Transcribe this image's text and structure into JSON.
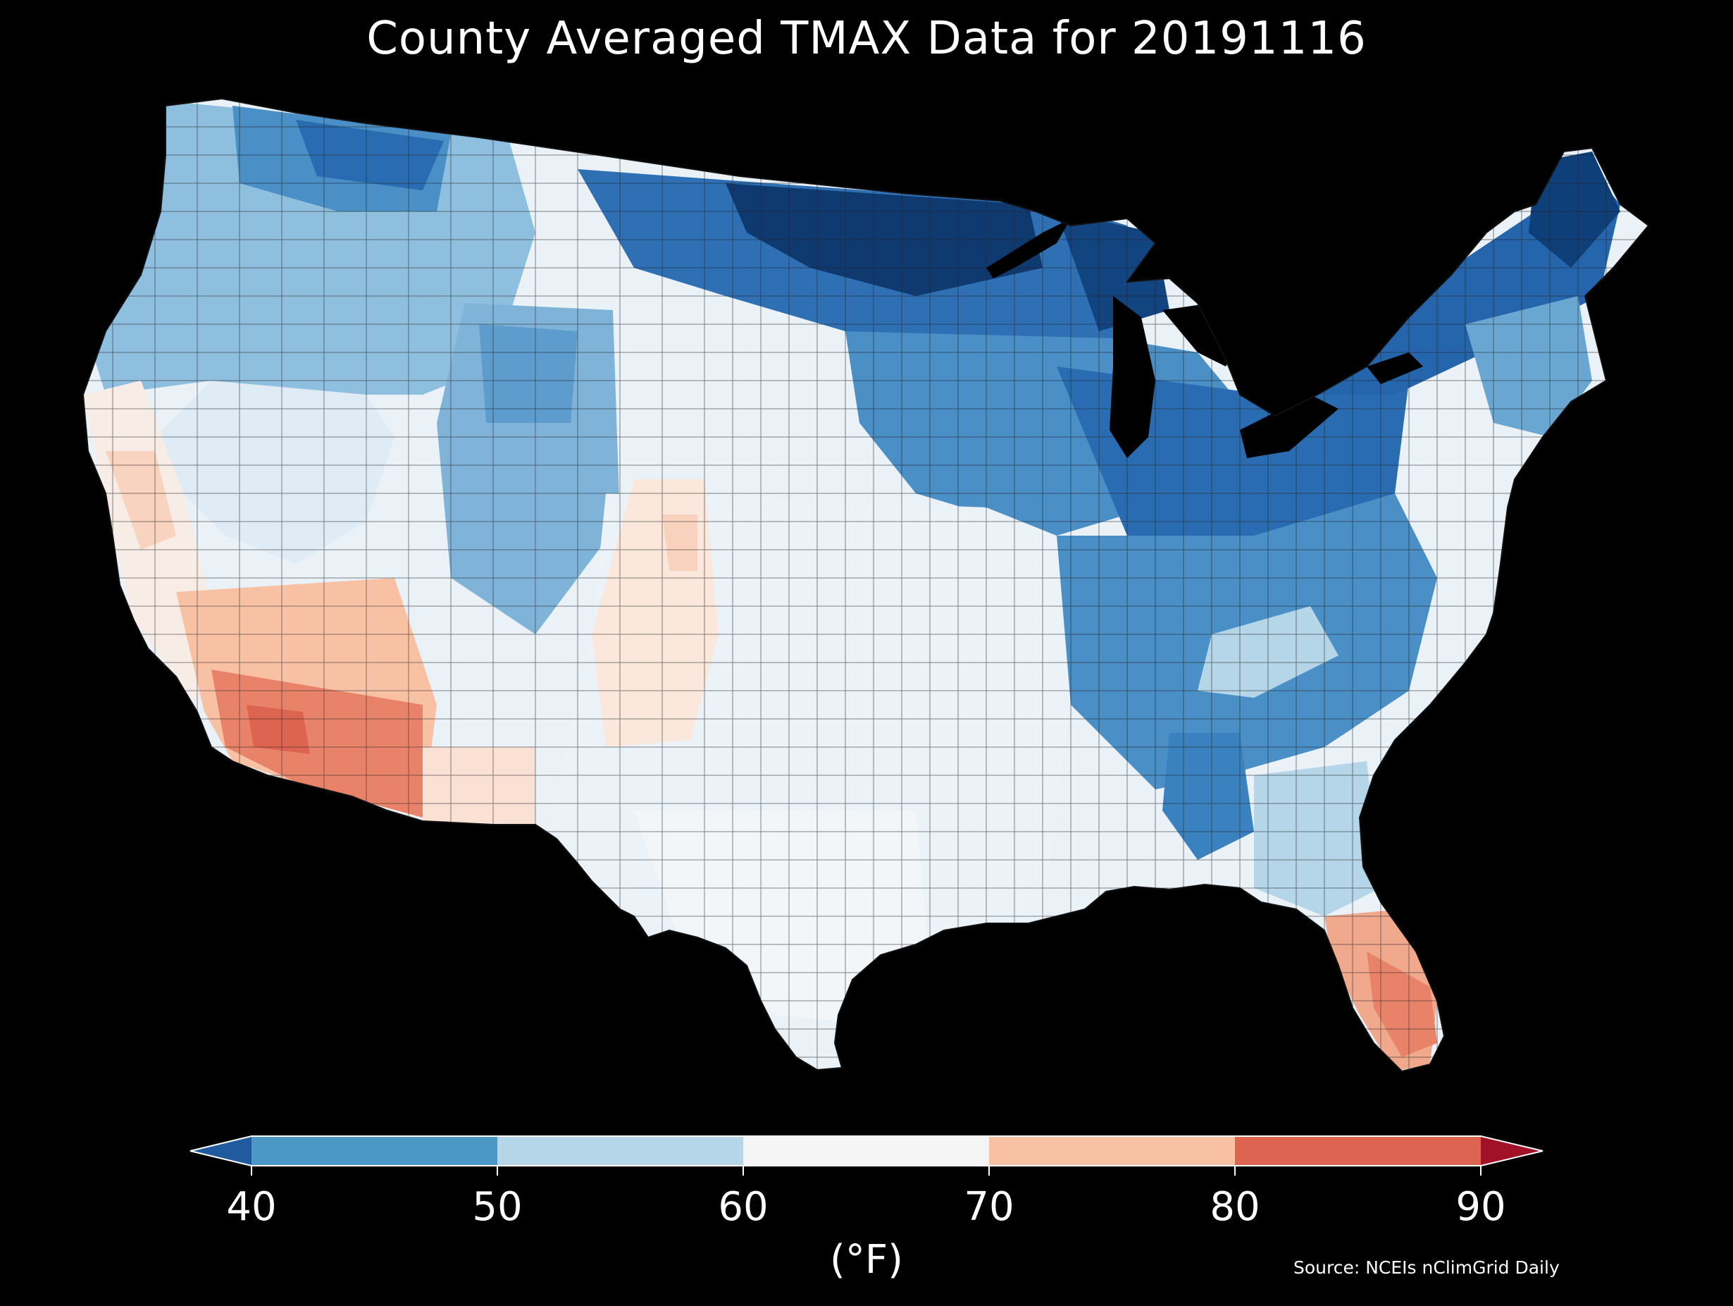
{
  "title": "County Averaged TMAX Data for 20191116",
  "legend": {
    "ticks": [
      "40",
      "50",
      "60",
      "70",
      "80",
      "90"
    ],
    "unit": "(°F)",
    "bins": [
      {
        "range": "<40",
        "color": "#1f5b9e"
      },
      {
        "range": "40-50",
        "color": "#4b97c6"
      },
      {
        "range": "50-60",
        "color": "#b5d5e8"
      },
      {
        "range": "60-70",
        "color": "#f5f5f5"
      },
      {
        "range": "70-80",
        "color": "#f8c1a4"
      },
      {
        "range": "80-90",
        "color": "#dd6450"
      },
      {
        "range": ">90",
        "color": "#a11228"
      }
    ]
  },
  "source": "Source: NCEIs nClimGrid Daily",
  "colors": {
    "background": "#000000",
    "county_border": "#222222",
    "very_cold": "#0e3a70",
    "cold": "#2a6cb2"
  }
}
